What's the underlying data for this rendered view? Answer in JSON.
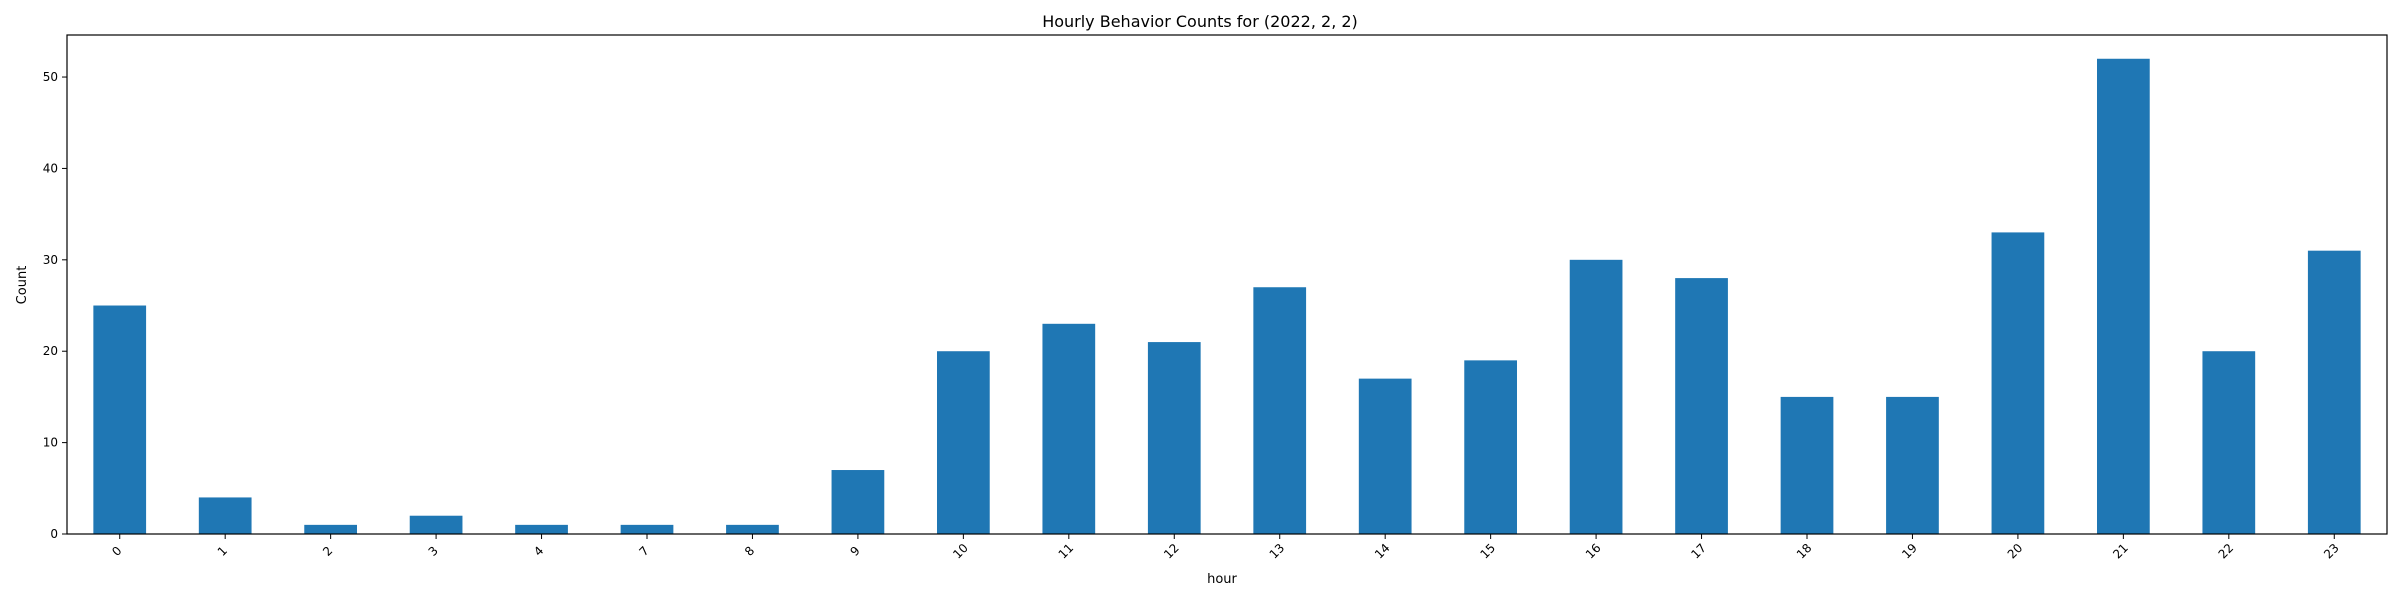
{
  "chart_data": {
    "type": "bar",
    "title": "Hourly Behavior Counts for (2022, 2, 2)",
    "xlabel": "hour",
    "ylabel": "Count",
    "categories": [
      "0",
      "1",
      "2",
      "3",
      "4",
      "7",
      "8",
      "9",
      "10",
      "11",
      "12",
      "13",
      "14",
      "15",
      "16",
      "17",
      "18",
      "19",
      "20",
      "21",
      "22",
      "23"
    ],
    "values": [
      25,
      4,
      1,
      2,
      1,
      1,
      1,
      7,
      20,
      23,
      21,
      27,
      17,
      19,
      30,
      28,
      15,
      15,
      33,
      52,
      20,
      31
    ],
    "ylim": [
      0,
      54.6
    ],
    "yticks": [
      0,
      10,
      20,
      30,
      40,
      50
    ],
    "grid": false,
    "legend": "none",
    "colors": {
      "bar": "#1f77b4"
    }
  }
}
